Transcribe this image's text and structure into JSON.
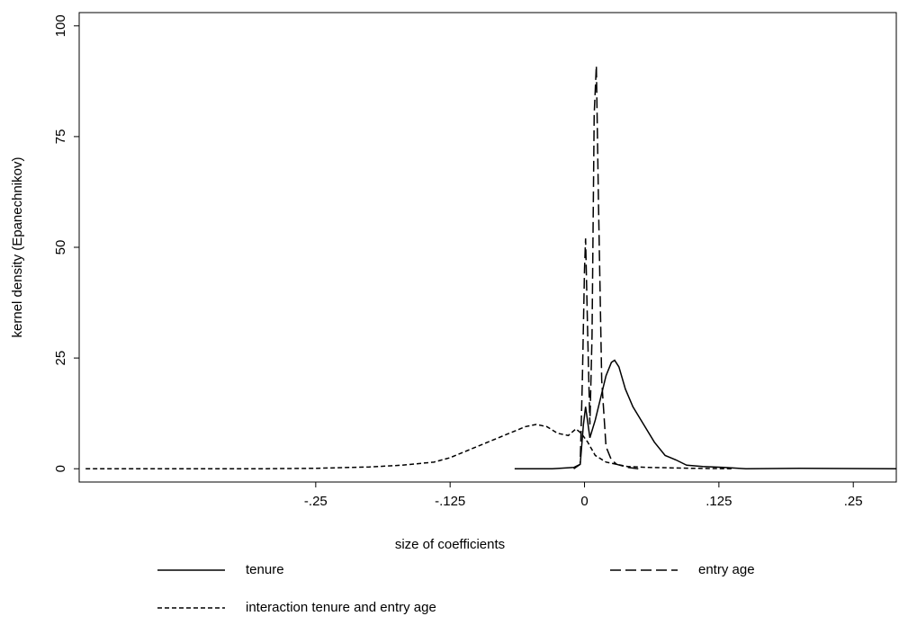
{
  "chart_data": {
    "type": "line",
    "xlabel": "size of coefficients",
    "ylabel": "kernel density (Epanechnikov)",
    "xlim": [
      -0.47,
      0.29
    ],
    "ylim": [
      -3,
      103
    ],
    "xticks": [
      {
        "value": -0.25,
        "label": "-.25"
      },
      {
        "value": -0.125,
        "label": "-.125"
      },
      0,
      {
        "value": 0.125,
        "label": ".125"
      },
      {
        "value": 0.25,
        "label": ".25"
      }
    ],
    "yticks": [
      0,
      25,
      50,
      75,
      100
    ],
    "grid": false,
    "series": [
      {
        "name": "tenure",
        "color": "#000000",
        "dash": "solid",
        "x": [
          -0.065,
          -0.03,
          -0.01,
          -0.004,
          -0.001,
          0.001,
          0.005,
          0.01,
          0.015,
          0.02,
          0.025,
          0.028,
          0.032,
          0.038,
          0.045,
          0.055,
          0.065,
          0.075,
          0.085,
          0.095,
          0.11,
          0.13,
          0.15,
          0.2,
          0.29
        ],
        "values": [
          0,
          0,
          0.3,
          1,
          10,
          14,
          7,
          11,
          16,
          21,
          24,
          24.5,
          23,
          18,
          14,
          10,
          6,
          3,
          2,
          0.8,
          0.5,
          0.3,
          0,
          0.1,
          0
        ]
      },
      {
        "name": "entry age",
        "color": "#000000",
        "dash": "long",
        "x": [
          -0.01,
          -0.004,
          -0.002,
          0,
          0.001,
          0.003,
          0.005,
          0.007,
          0.009,
          0.011,
          0.013,
          0.016,
          0.02,
          0.025,
          0.03,
          0.04,
          0.05
        ],
        "values": [
          0,
          1,
          20,
          45,
          52,
          30,
          10,
          30,
          80,
          91,
          60,
          20,
          5,
          2,
          1,
          0.3,
          0
        ]
      },
      {
        "name": "interaction tenure and entry age",
        "color": "#000000",
        "dash": "short",
        "x": [
          -0.464,
          -0.3,
          -0.25,
          -0.2,
          -0.17,
          -0.14,
          -0.125,
          -0.11,
          -0.09,
          -0.07,
          -0.055,
          -0.045,
          -0.035,
          -0.025,
          -0.015,
          -0.008,
          -0.003,
          0.003,
          0.01,
          0.02,
          0.04,
          0.06,
          0.1,
          0.137
        ],
        "values": [
          0,
          0,
          0.1,
          0.4,
          0.8,
          1.5,
          2.5,
          4,
          6,
          8,
          9.5,
          10,
          9.5,
          8,
          7.5,
          9,
          8,
          6,
          3,
          1.5,
          0.5,
          0.3,
          0.1,
          0
        ]
      }
    ],
    "legend": "bottom"
  }
}
